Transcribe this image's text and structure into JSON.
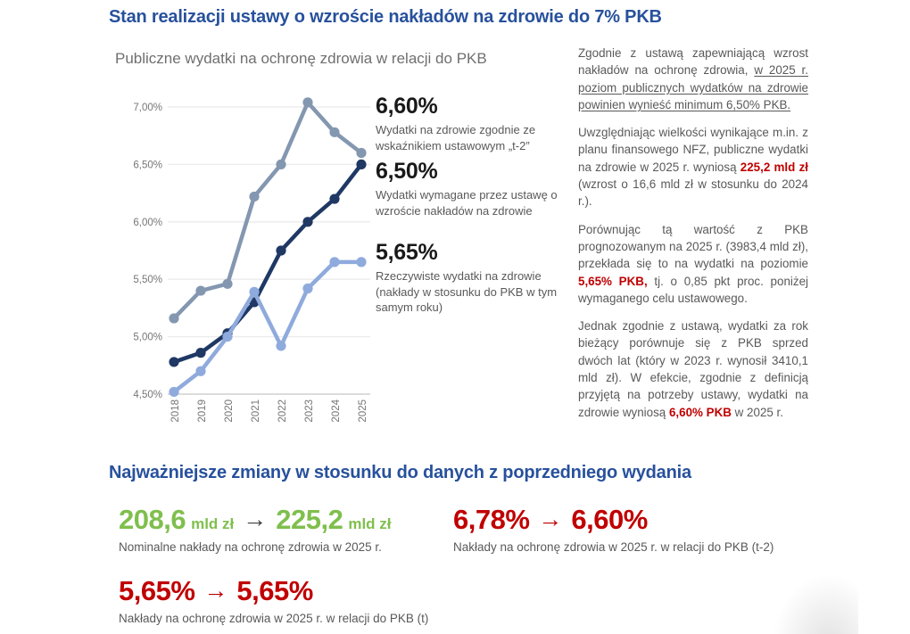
{
  "header": {
    "title": "Stan realizacji ustawy o wzroście nakładów na zdrowie do 7% PKB"
  },
  "chart_data": {
    "type": "line",
    "title": "Publiczne wydatki na ochronę zdrowia w relacji do PKB",
    "x": [
      "2018",
      "2019",
      "2020",
      "2021",
      "2022",
      "2023",
      "2024",
      "2025"
    ],
    "y_ticks": [
      "7,00%",
      "6,50%",
      "6,00%",
      "5,50%",
      "5,00%",
      "4,50%"
    ],
    "y_tick_values": [
      7.0,
      6.5,
      6.0,
      5.5,
      5.0,
      4.5
    ],
    "ylim": [
      4.5,
      7.0
    ],
    "grid": true,
    "legend_position": "right-annotations",
    "series": [
      {
        "id": "statutory-indicator-t2",
        "name": "Wydatki na zdrowie zgodnie ze wskaźnikiem ustawowym „t-2”",
        "color": "#8497B0",
        "values": [
          5.16,
          5.4,
          5.46,
          6.22,
          6.5,
          7.04,
          6.78,
          6.6
        ]
      },
      {
        "id": "required-by-law",
        "name": "Wydatki wymagane przez ustawę o wzroście nakładów na zdrowie",
        "color": "#1F3864",
        "values": [
          4.78,
          4.86,
          5.03,
          5.3,
          5.75,
          6.0,
          6.2,
          6.5
        ]
      },
      {
        "id": "actual-spending",
        "name": "Rzeczywiste wydatki na zdrowie (nakłady w stosunku do PKB w tym samym roku)",
        "color": "#8FAADC",
        "values": [
          4.52,
          4.7,
          5.0,
          5.39,
          4.92,
          5.42,
          5.65,
          5.65
        ]
      }
    ]
  },
  "annotations": [
    {
      "value": "6,60%",
      "caption": "Wydatki na zdrowie zgodnie ze wskaźnikiem ustawowym „t-2”"
    },
    {
      "value": "6,50%",
      "caption": "Wydatki wymagane przez ustawę o wzroście nakładów na zdrowie"
    },
    {
      "value": "5,65%",
      "caption": "Rzeczywiste wydatki na zdrowie (nakłady w stosunku do PKB w tym samym roku)"
    }
  ],
  "commentary": {
    "paragraphs": [
      [
        {
          "t": "Zgodnie z ustawą zapewniającą wzrost nakładów na ochronę zdrowia, ",
          "s": "n"
        },
        {
          "t": "w 2025 r. poziom publicznych wydatków na zdrowie powinien wynieść minimum 6,50% PKB.",
          "s": "u"
        }
      ],
      [
        {
          "t": "Uwzględniając wielkości wynikające m.in. z planu finansowego NFZ, publiczne wydatki na zdrowie w 2025 r. wyniosą ",
          "s": "n"
        },
        {
          "t": "225,2 mld zł",
          "s": "r"
        },
        {
          "t": " (wzrost o 16,6 mld zł w stosunku do 2024 r.).",
          "s": "n"
        }
      ],
      [
        {
          "t": "Porównując tą wartość z PKB prognozowanym na 2025 r. (3983,4 mld zł), przekłada się to na wydatki na poziomie ",
          "s": "n"
        },
        {
          "t": "5,65% PKB,",
          "s": "r"
        },
        {
          "t": " tj. o 0,85 pkt proc. poniżej wymaganego celu ustawowego.",
          "s": "n"
        }
      ],
      [
        {
          "t": "Jednak zgodnie z ustawą, wydatki za rok bieżący porównuje się z PKB sprzed dwóch lat (który w 2023 r. wynosił 3410,1 mld zł). W efekcie, zgodnie z definicją przyjętą na potrzeby ustawy, wydatki na zdrowie wyniosą ",
          "s": "n"
        },
        {
          "t": "6,60% PKB",
          "s": "r"
        },
        {
          "t": " w 2025 r.",
          "s": "n"
        }
      ]
    ]
  },
  "changes": {
    "title": "Najważniejsze zmiany w stosunku do danych z poprzedniego wydania",
    "arrow": "→",
    "items": [
      {
        "from": "208,6",
        "from_unit": "mld zł",
        "to": "225,2",
        "to_unit": "mld zł",
        "caption": "Nominalne nakłady na ochronę zdrowia w 2025 r."
      },
      {
        "from": "6,78%",
        "from_unit": "",
        "to": "6,60%",
        "to_unit": "",
        "caption": "Nakłady na ochronę zdrowia w 2025 r. w relacji do PKB (t-2)"
      },
      {
        "from": "5,65%",
        "from_unit": "",
        "to": "5,65%",
        "to_unit": "",
        "caption": "Nakłady na ochronę zdrowia w 2025 r. w relacji do PKB (t)"
      }
    ]
  },
  "colors": {
    "heading_blue": "#27519C",
    "red": "#C00000",
    "green": "#7FBF4D",
    "line_navy": "#1F3864",
    "line_steel": "#8497B0",
    "line_light_blue": "#8FAADC",
    "body_gray": "#595959",
    "axis_gray": "#767676"
  }
}
